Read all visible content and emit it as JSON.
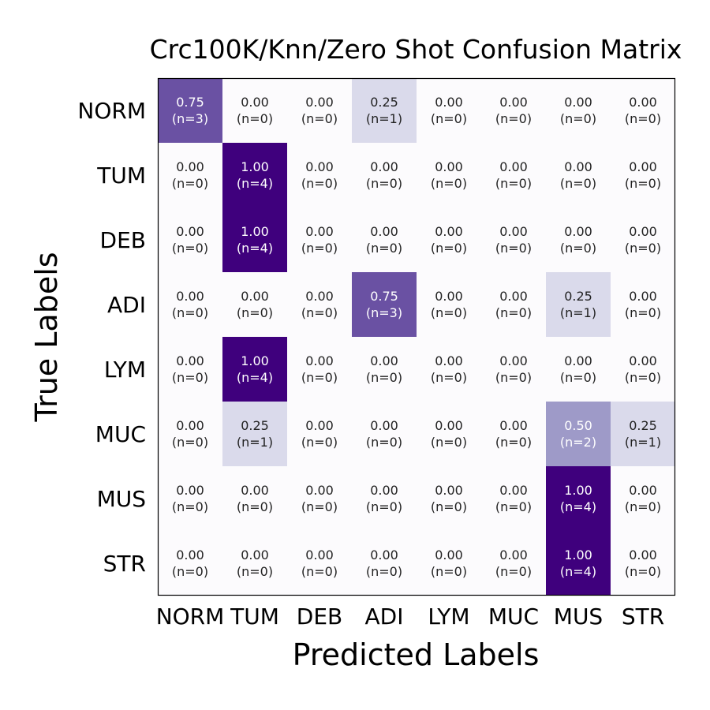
{
  "chart_data": {
    "type": "heatmap",
    "title": "Crc100K/Knn/Zero Shot Confusion Matrix",
    "xlabel": "Predicted Labels",
    "ylabel": "True Labels",
    "x_categories": [
      "NORM",
      "TUM",
      "DEB",
      "ADI",
      "LYM",
      "MUC",
      "MUS",
      "STR"
    ],
    "y_categories": [
      "NORM",
      "TUM",
      "DEB",
      "ADI",
      "LYM",
      "MUC",
      "MUS",
      "STR"
    ],
    "values": [
      [
        0.75,
        0.0,
        0.0,
        0.25,
        0.0,
        0.0,
        0.0,
        0.0
      ],
      [
        0.0,
        1.0,
        0.0,
        0.0,
        0.0,
        0.0,
        0.0,
        0.0
      ],
      [
        0.0,
        1.0,
        0.0,
        0.0,
        0.0,
        0.0,
        0.0,
        0.0
      ],
      [
        0.0,
        0.0,
        0.0,
        0.75,
        0.0,
        0.0,
        0.25,
        0.0
      ],
      [
        0.0,
        1.0,
        0.0,
        0.0,
        0.0,
        0.0,
        0.0,
        0.0
      ],
      [
        0.0,
        0.25,
        0.0,
        0.0,
        0.0,
        0.0,
        0.5,
        0.25
      ],
      [
        0.0,
        0.0,
        0.0,
        0.0,
        0.0,
        0.0,
        1.0,
        0.0
      ],
      [
        0.0,
        0.0,
        0.0,
        0.0,
        0.0,
        0.0,
        1.0,
        0.0
      ]
    ],
    "counts": [
      [
        3,
        0,
        0,
        1,
        0,
        0,
        0,
        0
      ],
      [
        0,
        4,
        0,
        0,
        0,
        0,
        0,
        0
      ],
      [
        0,
        4,
        0,
        0,
        0,
        0,
        0,
        0
      ],
      [
        0,
        0,
        0,
        3,
        0,
        0,
        1,
        0
      ],
      [
        0,
        4,
        0,
        0,
        0,
        0,
        0,
        0
      ],
      [
        0,
        1,
        0,
        0,
        0,
        0,
        2,
        1
      ],
      [
        0,
        0,
        0,
        0,
        0,
        0,
        4,
        0
      ],
      [
        0,
        0,
        0,
        0,
        0,
        0,
        4,
        0
      ]
    ],
    "colormap": "Purples",
    "color_stops": {
      "0.00": "#fcfbfd",
      "0.25": "#dadaeb",
      "0.50": "#9e9ac8",
      "0.75": "#6a51a3",
      "1.00": "#3f007d"
    },
    "text_color_dark": "#222222",
    "text_color_light": "#ffffff",
    "grid": false,
    "legend": "none"
  }
}
